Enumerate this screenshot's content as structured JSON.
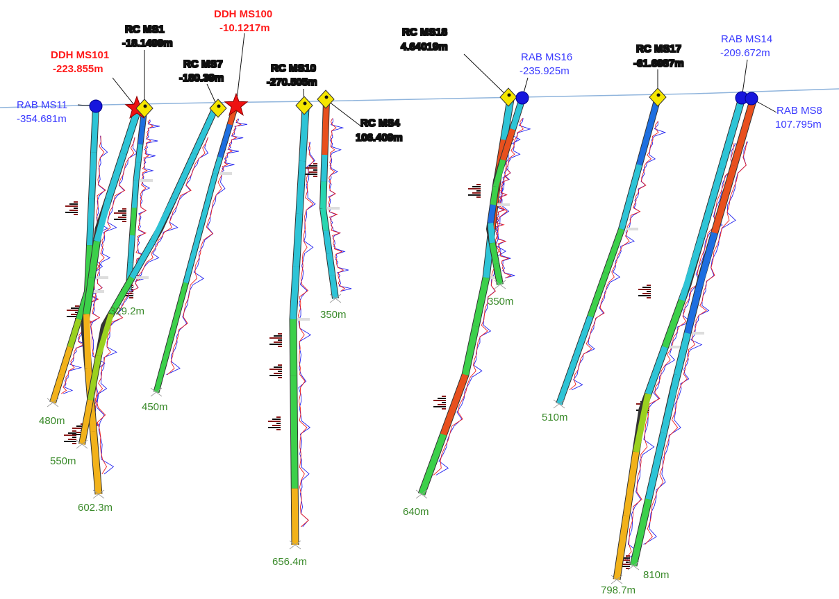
{
  "colors": {
    "ground": "#8fb4dc",
    "red_label": "#ff1a1a",
    "blue_label": "#3a3aff",
    "yellow_label_bg": "#f5f500",
    "depth_label": "#3a8a2a",
    "trace_blue": "#2222ee",
    "trace_red": "#ee2222"
  },
  "holes": [
    {
      "id": "ms11",
      "name": "RAB MS11",
      "value": "-354.681m",
      "type": "RAB",
      "label_style": "blue",
      "depth": "480m",
      "symbol": "circle-icon"
    },
    {
      "id": "ms101",
      "name": "DDH MS101",
      "value": "-223.855m",
      "type": "DDH",
      "label_style": "red",
      "depth": "602.3m",
      "symbol": "star-icon"
    },
    {
      "id": "ms1",
      "name": "RC MS1",
      "value": "-18.1499m",
      "type": "RC",
      "label_style": "yellow",
      "depth": "329.2m",
      "symbol": "diamond-icon"
    },
    {
      "id": "ms7",
      "name": "RC MS7",
      "value": "-180.39m",
      "type": "RC",
      "label_style": "yellow",
      "depth": "550m",
      "symbol": "diamond-icon"
    },
    {
      "id": "ms100",
      "name": "DDH MS100",
      "value": "-10.1217m",
      "type": "DDH",
      "label_style": "red",
      "depth": "450m",
      "symbol": "star-icon"
    },
    {
      "id": "ms10",
      "name": "RC MS10",
      "value": "-270.505m",
      "type": "RC",
      "label_style": "yellow",
      "depth": "656.4m",
      "symbol": "diamond-icon"
    },
    {
      "id": "ms4",
      "name": "RC MS4",
      "value": "106.409m",
      "type": "RC",
      "label_style": "yellow",
      "depth": "350m",
      "symbol": "diamond-icon"
    },
    {
      "id": "ms18",
      "name": "RC MS18",
      "value": "4.64019m",
      "type": "RC",
      "label_style": "yellow",
      "depth": "640m",
      "symbol": "diamond-icon"
    },
    {
      "id": "ms16",
      "name": "RAB MS16",
      "value": "-235.925m",
      "type": "RAB",
      "label_style": "blue",
      "depth": "350m",
      "symbol": "circle-icon"
    },
    {
      "id": "ms17",
      "name": "RC MS17",
      "value": "-61.6987m",
      "type": "RC",
      "label_style": "yellow",
      "depth": "510m",
      "symbol": "diamond-icon"
    },
    {
      "id": "ms14",
      "name": "RAB MS14",
      "value": "-209.672m",
      "type": "RAB",
      "label_style": "blue",
      "depth": "798.7m",
      "symbol": "circle-icon"
    },
    {
      "id": "ms8",
      "name": "RAB MS8",
      "value": "107.795m",
      "type": "RAB",
      "label_style": "blue",
      "depth": "810m",
      "symbol": "circle-icon"
    }
  ]
}
